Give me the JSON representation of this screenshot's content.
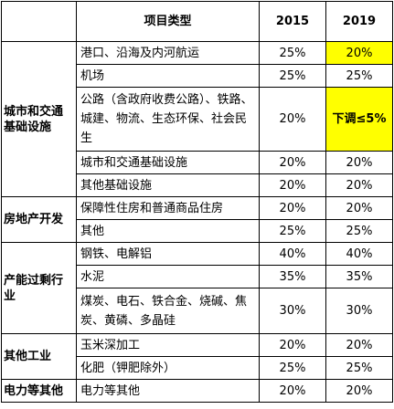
{
  "header": {
    "category": "",
    "item": "项目类型",
    "y2015": "2015",
    "y2019": "2019"
  },
  "groups": {
    "g1": "城市和交通基础设施",
    "g2": "房地产开发",
    "g3": "产能过剩行业",
    "g4": "其他工业",
    "g5": "电力等其他"
  },
  "rows": [
    {
      "item": "港口、沿海及内河航运",
      "v2015": "25%",
      "v2019": "20%"
    },
    {
      "item": "机场",
      "v2015": "25%",
      "v2019": "25%"
    },
    {
      "item": "公路（含政府收费公路）、铁路、城建、物流、生态环保、社会民生",
      "v2015": "20%",
      "v2019": "下调≤5%"
    },
    {
      "item": "城市和交通基础设施",
      "v2015": "20%",
      "v2019": "20%"
    },
    {
      "item": "其他基础设施",
      "v2015": "20%",
      "v2019": "20%"
    },
    {
      "item": "保障性住房和普通商品住房",
      "v2015": "20%",
      "v2019": "20%"
    },
    {
      "item": "其他",
      "v2015": "25%",
      "v2019": "25%"
    },
    {
      "item": "钢铁、电解铝",
      "v2015": "40%",
      "v2019": "40%"
    },
    {
      "item": "水泥",
      "v2015": "35%",
      "v2019": "35%"
    },
    {
      "item": "煤炭、电石、铁合金、烧碱、焦炭、黄磷、多晶硅",
      "v2015": "30%",
      "v2019": "30%"
    },
    {
      "item": "玉米深加工",
      "v2015": "20%",
      "v2019": "20%"
    },
    {
      "item": "化肥（钾肥除外）",
      "v2015": "25%",
      "v2019": "25%"
    },
    {
      "item": "电力等其他",
      "v2015": "20%",
      "v2019": "20%"
    }
  ],
  "colors": {
    "highlight": "#FFFF00",
    "border": "#000000"
  }
}
